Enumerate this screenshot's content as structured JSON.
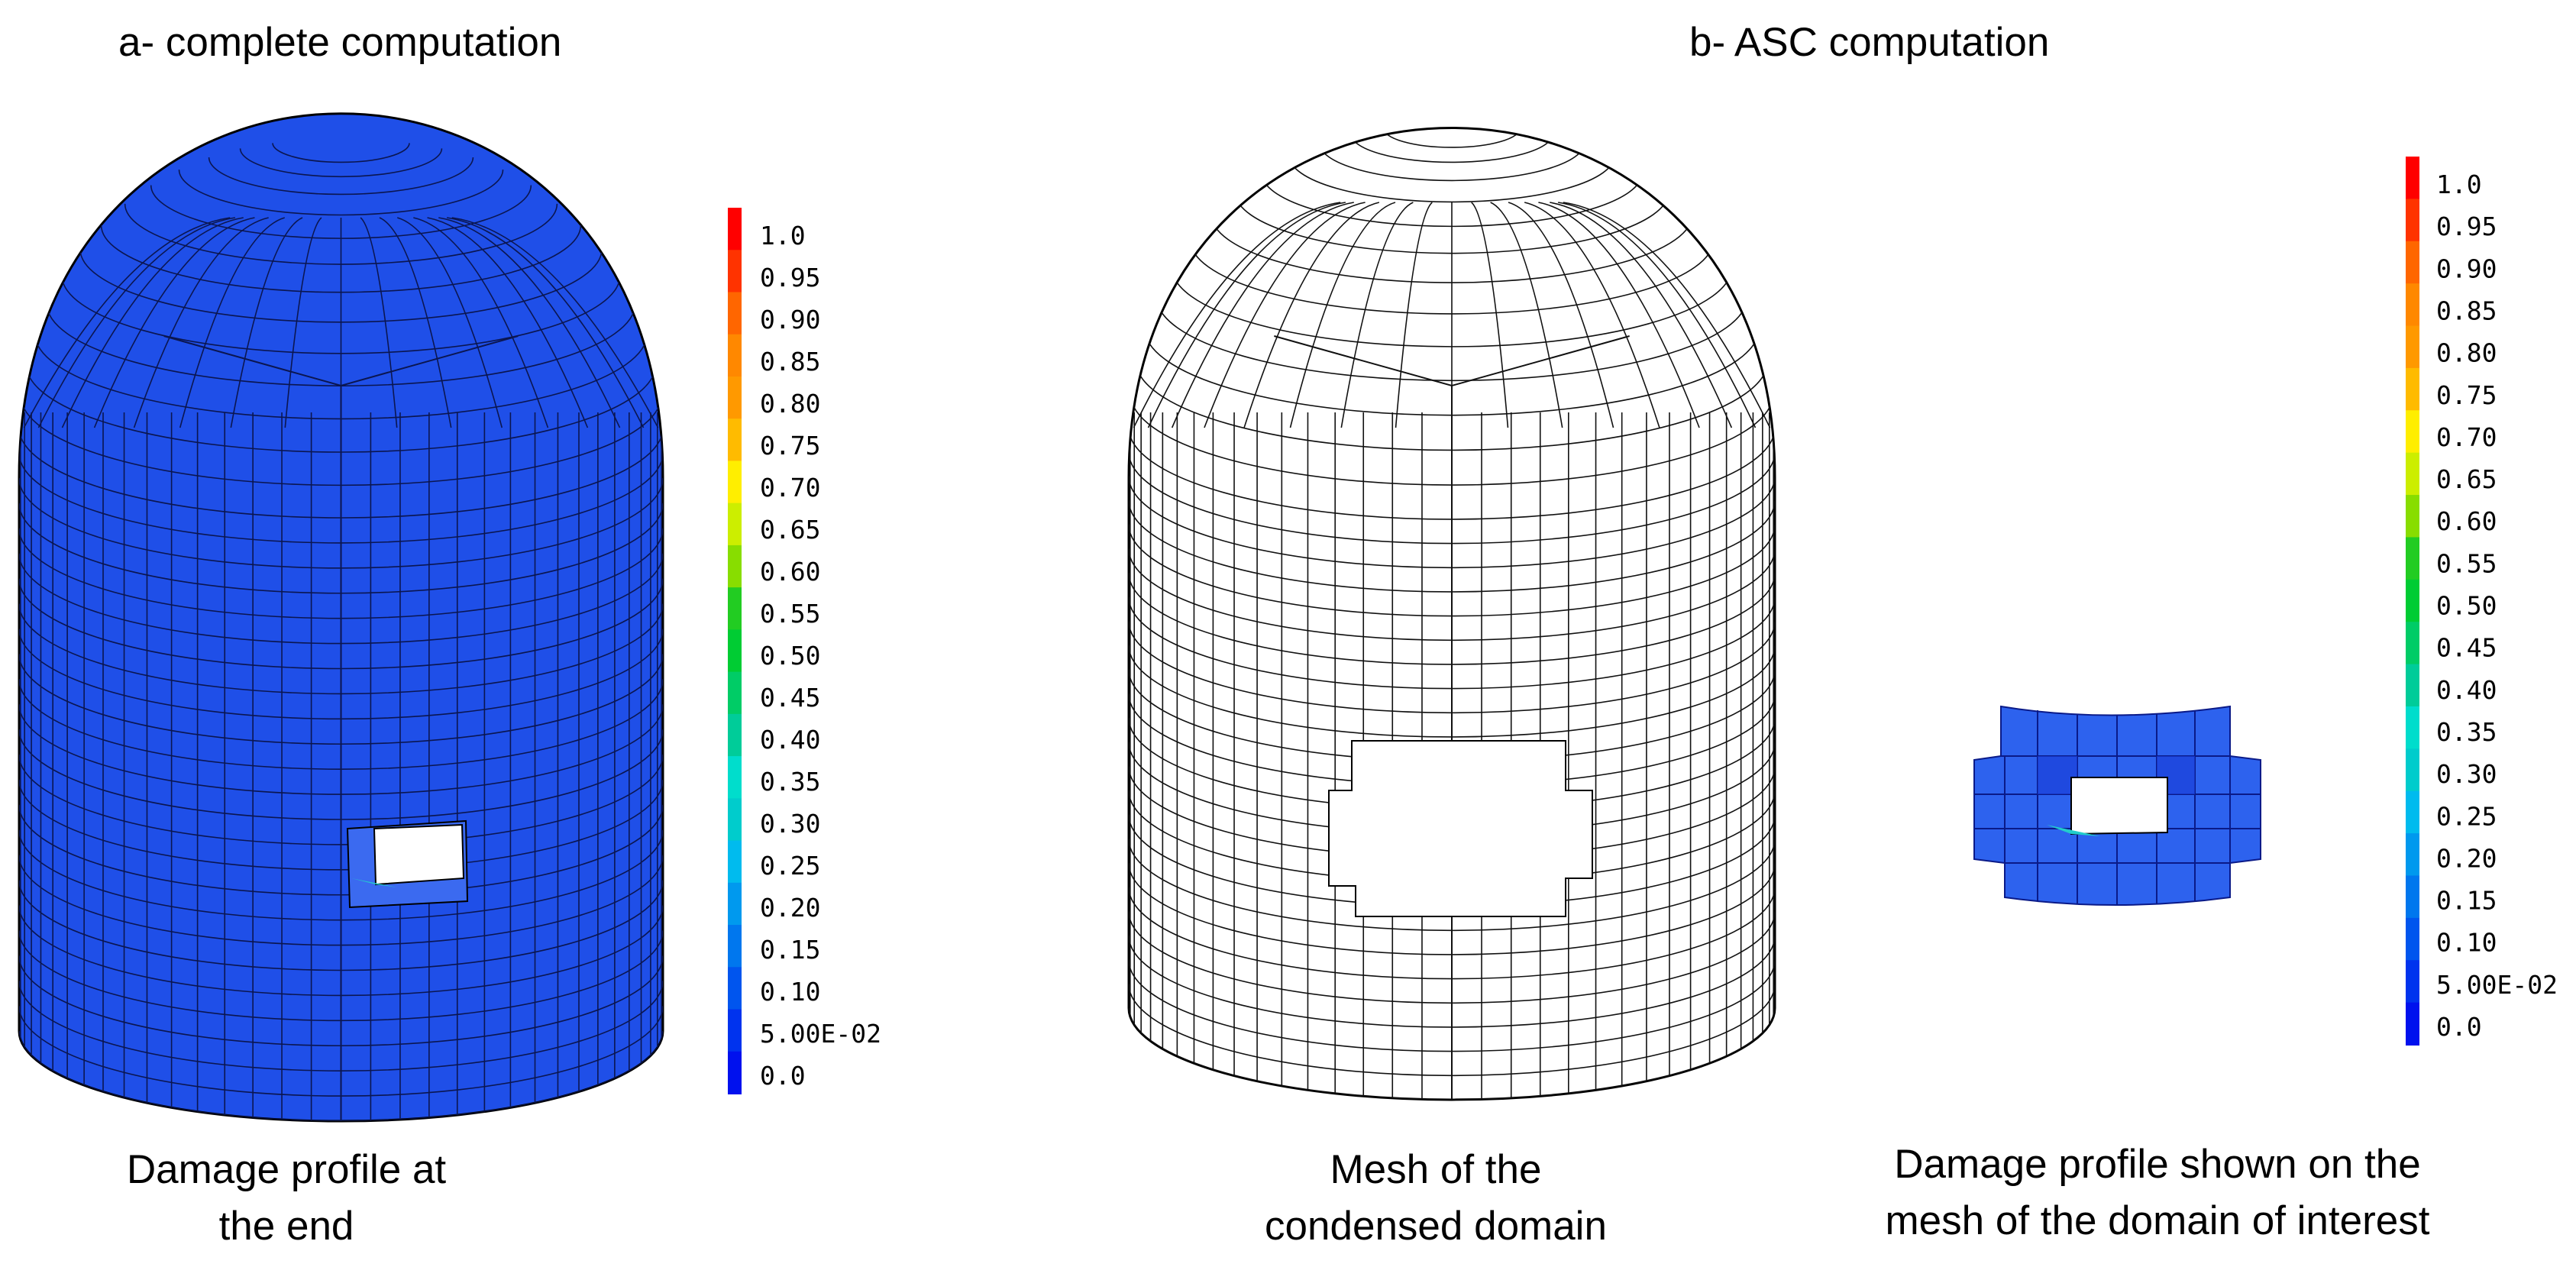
{
  "panel_a": {
    "title": "a- complete computation",
    "caption": [
      "Damage profile at",
      "the end"
    ]
  },
  "panel_b": {
    "title": "b- ASC computation",
    "caption_mesh": [
      "Mesh of the",
      "condensed domain"
    ],
    "caption_damage": [
      "Damage profile shown on the",
      "mesh of the domain of interest"
    ]
  },
  "legend": {
    "labels": [
      "1.0",
      "0.95",
      "0.90",
      "0.85",
      "0.80",
      "0.75",
      "0.70",
      "0.65",
      "0.60",
      "0.55",
      "0.50",
      "0.45",
      "0.40",
      "0.35",
      "0.30",
      "0.25",
      "0.20",
      "0.15",
      "0.10",
      "5.00E-02",
      "0.0"
    ],
    "colors": [
      "#ff0000",
      "#ff3300",
      "#ff6600",
      "#ff8800",
      "#ff9900",
      "#ffbb00",
      "#ffee00",
      "#ccee00",
      "#88dd00",
      "#22cc22",
      "#00cc33",
      "#00cc66",
      "#00cc99",
      "#00ddcc",
      "#00cccc",
      "#00bbee",
      "#0099ee",
      "#0077ee",
      "#0055ee",
      "#0033ee",
      "#0011ee"
    ]
  },
  "colors": {
    "dome_fill": "#1f4fe8",
    "mesh_line": "#111111",
    "background": "#ffffff"
  }
}
